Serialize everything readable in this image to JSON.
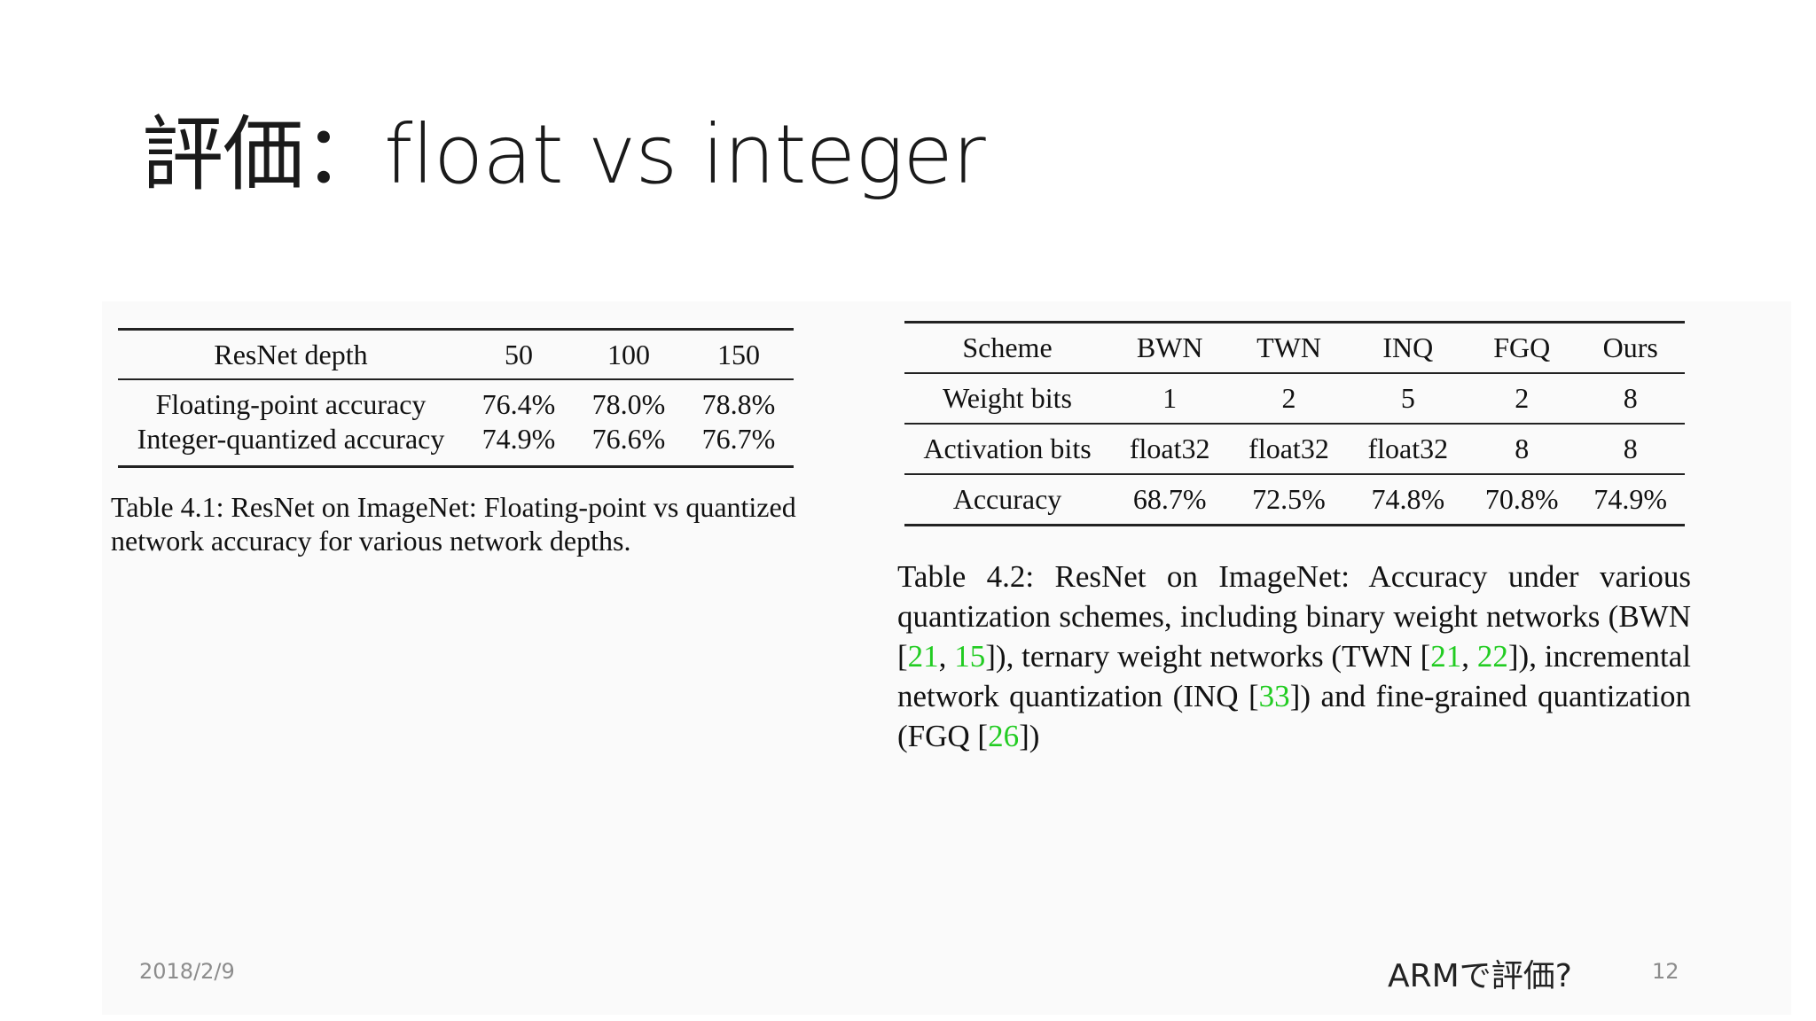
{
  "slide": {
    "title": "評価：float vs integer",
    "footer_date": "2018/2/9",
    "footer_center": "ARMで評価?",
    "page_number": "12"
  },
  "table1": {
    "header": [
      "ResNet depth",
      "50",
      "100",
      "150"
    ],
    "rows": [
      [
        "Floating-point accuracy",
        "76.4%",
        "78.0%",
        "78.8%"
      ],
      [
        "Integer-quantized accuracy",
        "74.9%",
        "76.6%",
        "76.7%"
      ]
    ],
    "caption": "Table 4.1: ResNet on ImageNet: Floating-point vs quantized network accuracy for various network depths."
  },
  "table2": {
    "rows": [
      [
        "Scheme",
        "BWN",
        "TWN",
        "INQ",
        "FGQ",
        "Ours"
      ],
      [
        "Weight bits",
        "1",
        "2",
        "5",
        "2",
        "8"
      ],
      [
        "Activation bits",
        "float32",
        "float32",
        "float32",
        "8",
        "8"
      ],
      [
        "Accuracy",
        "68.7%",
        "72.5%",
        "74.8%",
        "70.8%",
        "74.9%"
      ]
    ],
    "caption": {
      "t1": "Table 4.2: ResNet on ImageNet: Accuracy under various quantization schemes, including binary weight networks (BWN [",
      "c1": "21",
      "t2": ", ",
      "c2": "15",
      "t3": "]), ternary weight networks (TWN [",
      "c3": "21",
      "t4": ", ",
      "c4": "22",
      "t5": "]), incremental network quantization (INQ [",
      "c5": "33",
      "t6": "]) and fine-grained quantization (FGQ [",
      "c6": "26",
      "t7": "])"
    }
  },
  "colors": {
    "citation": "#22cc22",
    "title": "#1a1a1a",
    "footer": "#8c8c8c"
  }
}
